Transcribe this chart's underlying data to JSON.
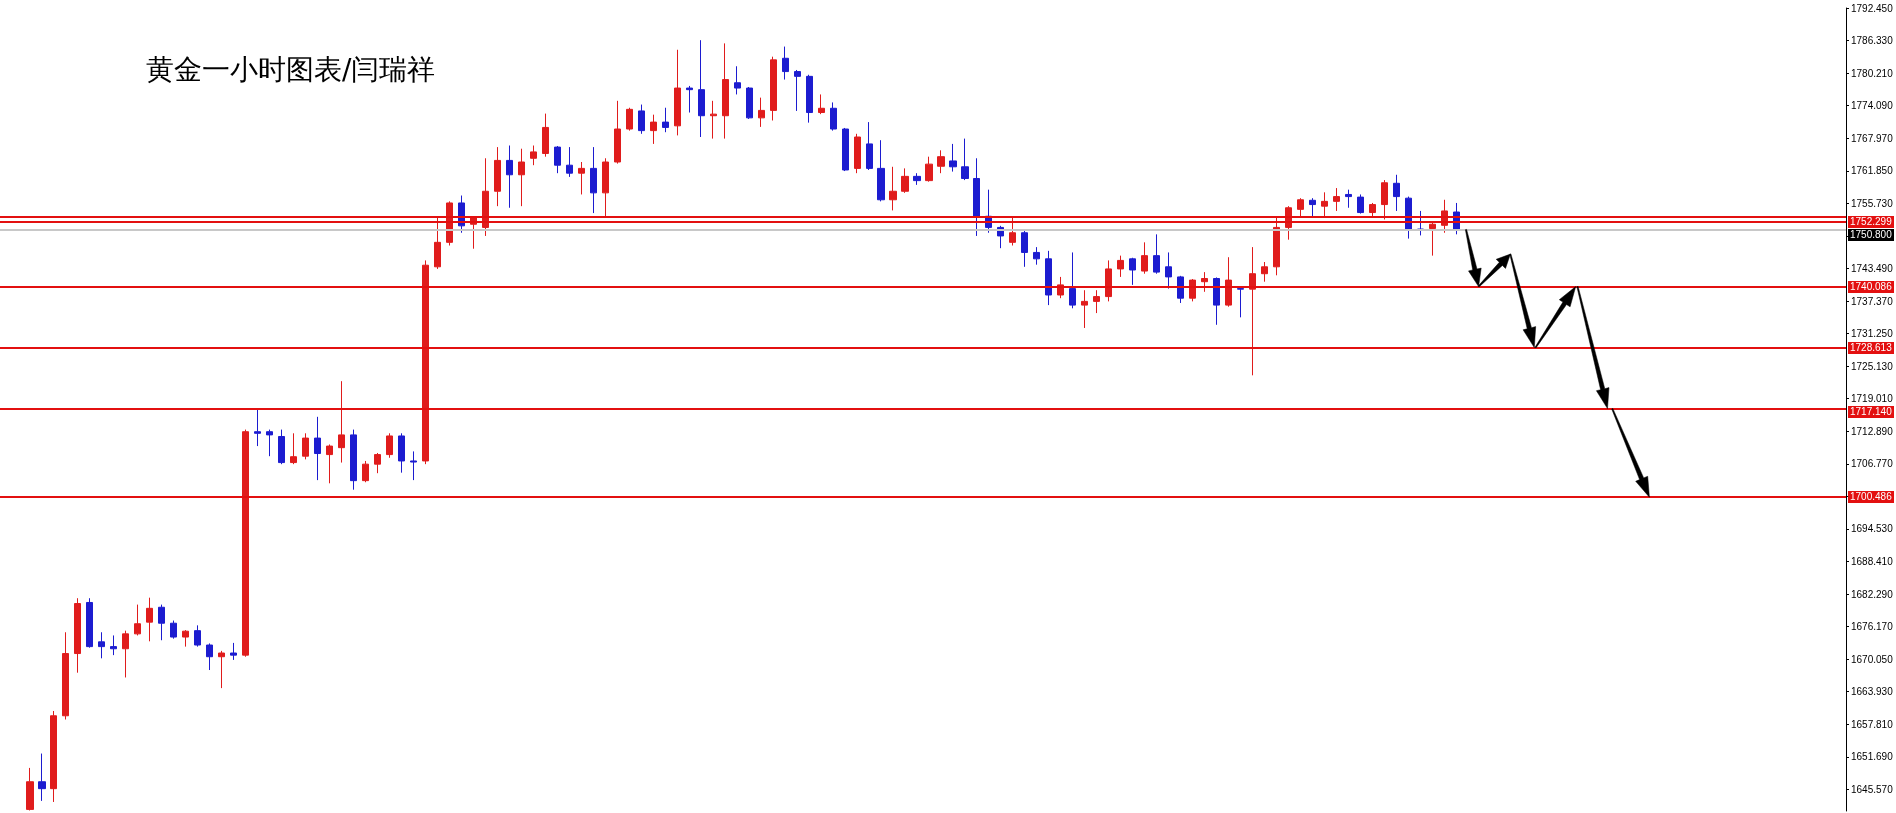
{
  "chart_data": {
    "type": "candlestick",
    "title": "黄金一小时图表/闫瑞祥",
    "categories": [
      null,
      null,
      null,
      null,
      null,
      null,
      null,
      null,
      null,
      null,
      null,
      null,
      null,
      null,
      null,
      null,
      null,
      null,
      null,
      null,
      null,
      null,
      null,
      null,
      null,
      null,
      null,
      null,
      null,
      null,
      null,
      null,
      null,
      null,
      null,
      null,
      null,
      null,
      null,
      null,
      null,
      null,
      null,
      null,
      null,
      null,
      null,
      null,
      null,
      null,
      null,
      null,
      null,
      null,
      null,
      null,
      null,
      null,
      null,
      null,
      null,
      null,
      null,
      null,
      null,
      null,
      null,
      null,
      null,
      null,
      null,
      null,
      null,
      null,
      null,
      null,
      null,
      null,
      null,
      null,
      null,
      null,
      null,
      null,
      null,
      null,
      null,
      null,
      null,
      null,
      null,
      null,
      null,
      null,
      null,
      null,
      null,
      null,
      null,
      null,
      null,
      null,
      null,
      null,
      null,
      null,
      null,
      null,
      null,
      null,
      null,
      null,
      null,
      null,
      null,
      null,
      null,
      null,
      null,
      null,
      null,
      null,
      null,
      null,
      null,
      null,
      null,
      null,
      null,
      null,
      null,
      null,
      null,
      null,
      null,
      null,
      null,
      null,
      null,
      null,
      null,
      null,
      null,
      null,
      null,
      null,
      null,
      null,
      null,
      null,
      null,
      null,
      null,
      null
    ],
    "ohlc": [
      null,
      null,
      [
        1641.8,
        1649.6,
        1641.6,
        1647.0
      ],
      [
        1647.0,
        1652.3,
        1643.4,
        1645.7
      ],
      [
        1645.7,
        1660.3,
        1643.2,
        1659.4
      ],
      [
        1659.4,
        1675.1,
        1658.7,
        1671.1
      ],
      [
        1671.1,
        1681.5,
        1667.5,
        1680.5
      ],
      [
        1680.7,
        1681.5,
        1672.2,
        1672.4
      ],
      [
        1673.3,
        1675.1,
        1670.2,
        1672.4
      ],
      [
        1672.4,
        1674.5,
        1670.8,
        1672.0
      ],
      [
        1672.0,
        1675.4,
        1666.6,
        1674.8
      ],
      [
        1674.8,
        1680.3,
        1674.5,
        1676.7
      ],
      [
        1677.0,
        1681.6,
        1673.4,
        1679.6
      ],
      [
        1679.8,
        1680.3,
        1673.6,
        1676.8
      ],
      [
        1676.8,
        1677.3,
        1673.9,
        1674.2
      ],
      [
        1674.2,
        1675.5,
        1672.4,
        1675.3
      ],
      [
        1675.4,
        1676.4,
        1672.4,
        1672.7
      ],
      [
        1672.7,
        1673.0,
        1668.0,
        1670.5
      ],
      [
        1670.5,
        1671.6,
        1664.6,
        1671.2
      ],
      [
        1671.2,
        1673.1,
        1669.9,
        1670.8
      ],
      [
        1670.8,
        1713.2,
        1670.5,
        1712.8
      ],
      [
        1712.8,
        1716.9,
        1710.1,
        1712.5
      ],
      [
        1712.8,
        1713.2,
        1708.2,
        1712.2
      ],
      [
        1711.9,
        1713.2,
        1706.7,
        1707.0
      ],
      [
        1707.0,
        1712.5,
        1706.7,
        1708.1
      ],
      [
        1708.2,
        1712.5,
        1707.6,
        1711.6
      ],
      [
        1711.6,
        1715.6,
        1703.7,
        1708.7
      ],
      [
        1708.5,
        1710.4,
        1703.1,
        1710.1
      ],
      [
        1709.8,
        1722.3,
        1707.0,
        1712.2
      ],
      [
        1712.2,
        1713.2,
        1701.9,
        1703.6
      ],
      [
        1703.6,
        1707.3,
        1703.3,
        1706.7
      ],
      [
        1706.7,
        1708.8,
        1705.0,
        1708.5
      ],
      [
        1708.5,
        1712.5,
        1707.9,
        1712.0
      ],
      [
        1712.0,
        1712.5,
        1705.1,
        1707.3
      ],
      [
        1707.3,
        1709.1,
        1703.7,
        1707.1
      ],
      [
        1707.3,
        1745.0,
        1706.7,
        1744.1
      ],
      [
        1743.8,
        1753.0,
        1743.4,
        1748.4
      ],
      [
        1748.4,
        1756.1,
        1747.8,
        1755.8
      ],
      [
        1755.8,
        1757.2,
        1750.2,
        1751.5
      ],
      [
        1751.8,
        1753.2,
        1747.2,
        1753.0
      ],
      [
        1751.2,
        1764.2,
        1749.6,
        1758.0
      ],
      [
        1758.0,
        1766.3,
        1755.2,
        1763.8
      ],
      [
        1763.8,
        1766.6,
        1754.9,
        1761.1
      ],
      [
        1761.1,
        1766.0,
        1755.2,
        1763.5
      ],
      [
        1764.2,
        1766.6,
        1762.9,
        1765.4
      ],
      [
        1765.1,
        1772.6,
        1764.5,
        1770.0
      ],
      [
        1766.3,
        1766.5,
        1761.4,
        1762.9
      ],
      [
        1762.9,
        1766.3,
        1760.7,
        1761.4
      ],
      [
        1761.4,
        1763.5,
        1757.4,
        1762.3
      ],
      [
        1762.3,
        1766.3,
        1753.9,
        1757.7
      ],
      [
        1757.7,
        1764.2,
        1753.3,
        1763.5
      ],
      [
        1763.5,
        1775.0,
        1763.2,
        1769.7
      ],
      [
        1769.7,
        1773.7,
        1769.4,
        1773.4
      ],
      [
        1773.1,
        1774.3,
        1768.8,
        1769.4
      ],
      [
        1769.4,
        1772.4,
        1766.9,
        1771.0
      ],
      [
        1771.0,
        1773.7,
        1769.1,
        1770.0
      ],
      [
        1770.3,
        1784.6,
        1768.5,
        1777.4
      ],
      [
        1777.4,
        1777.8,
        1772.8,
        1777.1
      ],
      [
        1777.1,
        1786.4,
        1768.2,
        1772.2
      ],
      [
        1772.2,
        1775.0,
        1767.9,
        1772.5
      ],
      [
        1772.2,
        1785.8,
        1767.9,
        1779.0
      ],
      [
        1778.4,
        1781.5,
        1776.2,
        1777.4
      ],
      [
        1777.4,
        1777.6,
        1771.6,
        1771.8
      ],
      [
        1771.8,
        1775.6,
        1770.1,
        1773.2
      ],
      [
        1773.2,
        1783.3,
        1771.3,
        1782.7
      ],
      [
        1783.0,
        1785.2,
        1779.0,
        1780.5
      ],
      [
        1780.5,
        1780.8,
        1773.1,
        1779.6
      ],
      [
        1779.6,
        1779.9,
        1770.9,
        1772.8
      ],
      [
        1772.8,
        1776.2,
        1772.5,
        1773.6
      ],
      [
        1773.6,
        1774.7,
        1769.4,
        1769.7
      ],
      [
        1769.7,
        1769.9,
        1761.8,
        1762.0
      ],
      [
        1762.3,
        1768.8,
        1761.4,
        1768.2
      ],
      [
        1766.9,
        1771.0,
        1762.0,
        1762.3
      ],
      [
        1762.3,
        1767.6,
        1756.1,
        1756.4
      ],
      [
        1756.4,
        1762.6,
        1754.4,
        1758.0
      ],
      [
        1758.0,
        1762.3,
        1757.7,
        1760.8
      ],
      [
        1760.8,
        1761.4,
        1759.2,
        1760.0
      ],
      [
        1760.0,
        1764.5,
        1759.8,
        1763.1
      ],
      [
        1762.7,
        1765.7,
        1761.4,
        1764.5
      ],
      [
        1763.7,
        1766.9,
        1761.7,
        1762.6
      ],
      [
        1762.6,
        1767.9,
        1760.1,
        1760.4
      ],
      [
        1760.4,
        1764.2,
        1749.6,
        1753.3
      ],
      [
        1753.3,
        1758.3,
        1750.2,
        1751.2
      ],
      [
        1751.2,
        1751.5,
        1747.3,
        1749.6
      ],
      [
        1748.4,
        1753.0,
        1747.8,
        1750.2
      ],
      [
        1750.2,
        1750.6,
        1743.8,
        1746.5
      ],
      [
        1746.5,
        1747.5,
        1744.2,
        1745.3
      ],
      [
        1745.3,
        1746.8,
        1736.6,
        1738.5
      ],
      [
        1738.5,
        1741.9,
        1737.9,
        1740.4
      ],
      [
        1739.7,
        1746.5,
        1736.0,
        1736.6
      ],
      [
        1736.6,
        1739.4,
        1732.3,
        1737.3
      ],
      [
        1737.3,
        1739.4,
        1735.1,
        1738.2
      ],
      [
        1738.2,
        1745.0,
        1737.3,
        1743.4
      ],
      [
        1743.4,
        1745.9,
        1741.9,
        1745.0
      ],
      [
        1745.3,
        1745.5,
        1740.4,
        1743.2
      ],
      [
        1743.0,
        1748.4,
        1742.5,
        1745.9
      ],
      [
        1745.9,
        1749.9,
        1742.5,
        1742.8
      ],
      [
        1743.8,
        1746.5,
        1739.7,
        1741.9
      ],
      [
        1741.9,
        1742.1,
        1737.0,
        1737.9
      ],
      [
        1737.9,
        1741.5,
        1737.3,
        1741.3
      ],
      [
        1741.0,
        1742.8,
        1739.1,
        1741.6
      ],
      [
        1741.6,
        1741.8,
        1732.9,
        1736.6
      ],
      [
        1736.6,
        1745.6,
        1736.3,
        1741.3
      ],
      [
        1739.7,
        1740.0,
        1734.3,
        1739.6
      ],
      [
        1739.6,
        1747.5,
        1723.4,
        1742.5
      ],
      [
        1742.5,
        1744.7,
        1741.0,
        1743.8
      ],
      [
        1743.8,
        1753.3,
        1742.2,
        1751.2
      ],
      [
        1751.2,
        1755.2,
        1748.9,
        1754.9
      ],
      [
        1754.6,
        1756.7,
        1753.3,
        1756.4
      ],
      [
        1756.3,
        1756.7,
        1753.0,
        1755.5
      ],
      [
        1755.2,
        1757.8,
        1753.0,
        1756.1
      ],
      [
        1756.1,
        1758.6,
        1754.3,
        1757.0
      ],
      [
        1757.4,
        1758.3,
        1754.9,
        1757.0
      ],
      [
        1756.9,
        1757.4,
        1753.8,
        1754.0
      ],
      [
        1754.0,
        1755.8,
        1753.0,
        1755.5
      ],
      [
        1755.5,
        1760.1,
        1752.7,
        1759.6
      ],
      [
        1759.5,
        1761.1,
        1754.3,
        1757.0
      ],
      [
        1756.7,
        1757.0,
        1749.1,
        1750.9
      ],
      [
        1750.9,
        1754.3,
        1749.7,
        1750.7
      ],
      [
        1751.0,
        1752.1,
        1745.9,
        1751.8
      ],
      [
        1751.6,
        1756.4,
        1750.2,
        1754.3
      ],
      [
        1754.1,
        1755.8,
        1749.9,
        1750.8
      ],
      null,
      null,
      null,
      null,
      null,
      null,
      null,
      null,
      null,
      null,
      null,
      null,
      null,
      null,
      null,
      null,
      null,
      null,
      null,
      null,
      null,
      null,
      null,
      null,
      null,
      null,
      null,
      null,
      null,
      null,
      null,
      null
    ],
    "colors": [
      null,
      null,
      "#e01c1c",
      "#1c1cd0",
      "#e01c1c",
      "#e01c1c",
      "#e01c1c",
      "#1c1cd0",
      "#1c1cd0",
      "#1c1cd0",
      "#e01c1c",
      "#e01c1c",
      "#e01c1c",
      "#1c1cd0",
      "#1c1cd0",
      "#e01c1c",
      "#1c1cd0",
      "#1c1cd0",
      "#e01c1c",
      "#1c1cd0",
      "#e01c1c",
      "#1c1cd0",
      "#1c1cd0",
      "#1c1cd0",
      "#e01c1c",
      "#e01c1c",
      "#1c1cd0",
      "#e01c1c",
      "#e01c1c",
      "#1c1cd0",
      "#e01c1c",
      "#e01c1c",
      "#e01c1c",
      "#1c1cd0",
      "#1c1cd0",
      "#e01c1c",
      "#e01c1c",
      "#e01c1c",
      "#1c1cd0",
      "#e01c1c",
      "#e01c1c",
      "#e01c1c",
      "#1c1cd0",
      "#e01c1c",
      "#e01c1c",
      "#e01c1c",
      "#1c1cd0",
      "#1c1cd0",
      "#e01c1c",
      "#1c1cd0",
      "#e01c1c",
      "#e01c1c",
      "#e01c1c",
      "#1c1cd0",
      "#e01c1c",
      "#1c1cd0",
      "#e01c1c",
      "#1c1cd0",
      "#1c1cd0",
      "#e01c1c",
      "#e01c1c",
      "#1c1cd0",
      "#1c1cd0",
      "#e01c1c",
      "#e01c1c",
      "#1c1cd0",
      "#1c1cd0",
      "#1c1cd0",
      "#e01c1c",
      "#1c1cd0",
      "#1c1cd0",
      "#e01c1c",
      "#1c1cd0",
      "#1c1cd0",
      "#e01c1c",
      "#e01c1c",
      "#1c1cd0",
      "#e01c1c",
      "#e01c1c",
      "#1c1cd0",
      "#1c1cd0",
      "#1c1cd0",
      "#1c1cd0",
      "#1c1cd0",
      "#e01c1c",
      "#1c1cd0",
      "#1c1cd0",
      "#1c1cd0",
      "#e01c1c",
      "#1c1cd0",
      "#e01c1c",
      "#e01c1c",
      "#e01c1c",
      "#e01c1c",
      "#1c1cd0",
      "#e01c1c",
      "#1c1cd0",
      "#1c1cd0",
      "#1c1cd0",
      "#e01c1c",
      "#e01c1c",
      "#1c1cd0",
      "#e01c1c",
      "#1c1cd0",
      "#e01c1c",
      "#e01c1c",
      "#e01c1c",
      "#e01c1c",
      "#e01c1c",
      "#1c1cd0",
      "#e01c1c",
      "#e01c1c",
      "#1c1cd0",
      "#1c1cd0",
      "#e01c1c",
      "#e01c1c",
      "#1c1cd0",
      "#1c1cd0",
      "#1c1cd0",
      "#e01c1c",
      "#e01c1c",
      "#1c1cd0",
      null,
      null,
      null,
      null,
      null,
      null,
      null,
      null,
      null,
      null,
      null,
      null,
      null,
      null,
      null,
      null,
      null,
      null,
      null,
      null,
      null,
      null,
      null,
      null,
      null,
      null,
      null,
      null,
      null,
      null,
      null,
      null
    ],
    "ylim": [
      1641.5,
      1792.45
    ],
    "yticks": [
      {
        "value": 1645.57,
        "label": "1645.570"
      },
      {
        "value": 1651.69,
        "label": "1651.690"
      },
      {
        "value": 1657.81,
        "label": "1657.810"
      },
      {
        "value": 1663.93,
        "label": "1663.930"
      },
      {
        "value": 1670.05,
        "label": "1670.050"
      },
      {
        "value": 1676.17,
        "label": "1676.170"
      },
      {
        "value": 1682.29,
        "label": "1682.290"
      },
      {
        "value": 1688.41,
        "label": "1688.410"
      },
      {
        "value": 1694.53,
        "label": "1694.530"
      },
      {
        "value": 1700.65,
        "label": null
      },
      {
        "value": 1706.77,
        "label": "1706.770"
      },
      {
        "value": 1712.89,
        "label": "1712.890"
      },
      {
        "value": 1719.01,
        "label": "1719.010"
      },
      {
        "value": 1725.13,
        "label": "1725.130"
      },
      {
        "value": 1731.25,
        "label": "1731.250"
      },
      {
        "value": 1737.37,
        "label": "1737.370"
      },
      {
        "value": 1743.49,
        "label": "1743.490"
      },
      {
        "value": 1749.61,
        "label": null
      },
      {
        "value": 1755.73,
        "label": "1755.730"
      },
      {
        "value": 1761.85,
        "label": "1761.850"
      },
      {
        "value": 1767.97,
        "label": "1767.970"
      },
      {
        "value": 1774.09,
        "label": "1774.090"
      },
      {
        "value": 1780.21,
        "label": "1780.210"
      },
      {
        "value": 1786.33,
        "label": "1786.330"
      },
      {
        "value": 1792.45,
        "label": "1792.450"
      }
    ],
    "ref_lines": [
      {
        "axis": "y",
        "value": 1753.2,
        "label": null,
        "color": "#e31010"
      },
      {
        "axis": "y",
        "value": 1752.299,
        "label": "1752.299",
        "color": "#e31010"
      },
      {
        "axis": "y",
        "value": 1750.8,
        "label": "1750.800",
        "color": "#c8c8c8"
      },
      {
        "axis": "y",
        "value": 1740.086,
        "label": "1740.086",
        "color": "#e31010"
      },
      {
        "axis": "y",
        "value": 1728.613,
        "label": "1728.613",
        "color": "#e31010"
      },
      {
        "axis": "y",
        "value": 1717.14,
        "label": "1717.140",
        "color": "#e31010"
      },
      {
        "axis": "y",
        "value": 1700.486,
        "label": "1700.486",
        "color": "#e31010"
      }
    ],
    "grid": false,
    "tick_labels": "y"
  }
}
